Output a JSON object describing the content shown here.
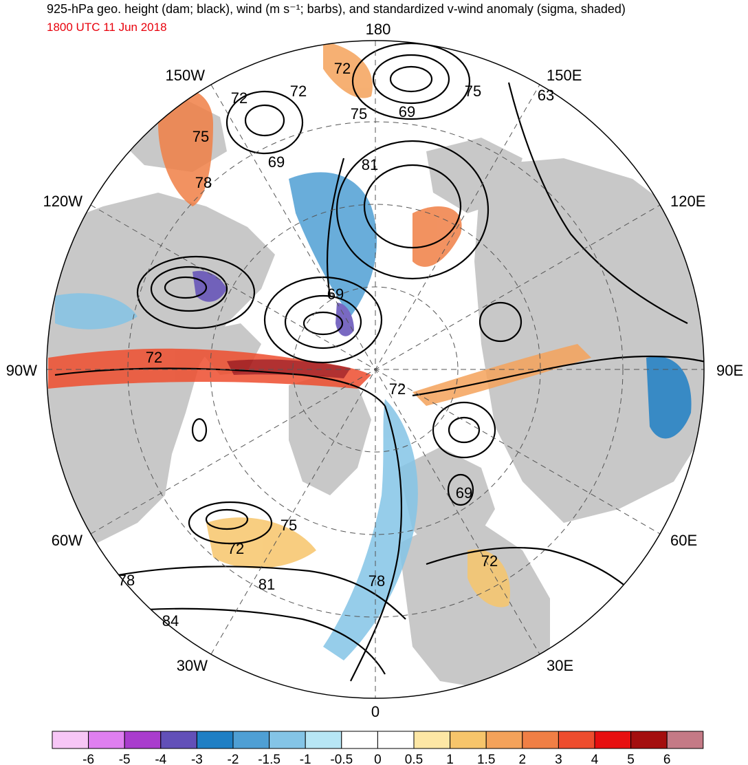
{
  "title": "925-hPa geo. height (dam; black), wind (m s⁻¹; barbs), and standardized v-wind anomaly (sigma, shaded)",
  "valid_time": "1800 UTC 11 Jun 2018",
  "longitude_labels": [
    "180",
    "150E",
    "120E",
    "90E",
    "60E",
    "30E",
    "0",
    "30W",
    "60W",
    "90W",
    "120W",
    "150W"
  ],
  "contour_labels": [
    "72",
    "72",
    "72",
    "75",
    "69",
    "75",
    "69",
    "63",
    "81",
    "69",
    "72",
    "72",
    "75",
    "78",
    "75",
    "72",
    "81",
    "78",
    "84",
    "72",
    "78",
    "69"
  ],
  "colorbar": {
    "tick_labels": [
      "-6",
      "-5",
      "-4",
      "-3",
      "-2",
      "-1.5",
      "-1",
      "-0.5",
      "0",
      "0.5",
      "1",
      "1.5",
      "2",
      "3",
      "4",
      "5",
      "6"
    ],
    "colors": [
      "#f7c6f6",
      "#df7ff0",
      "#a93ccd",
      "#6250b8",
      "#1f7fc4",
      "#4f9fd4",
      "#84c4e6",
      "#b7e6f5",
      "#ffffff",
      "#ffffff",
      "#fde7a5",
      "#f7c56b",
      "#f4a25a",
      "#f07f45",
      "#ee4d2e",
      "#e70f10",
      "#a40e0e",
      "#c47a86"
    ]
  },
  "land_color": "#c8c8c8",
  "ocean_color": "#ffffff",
  "contour_color": "#000000"
}
